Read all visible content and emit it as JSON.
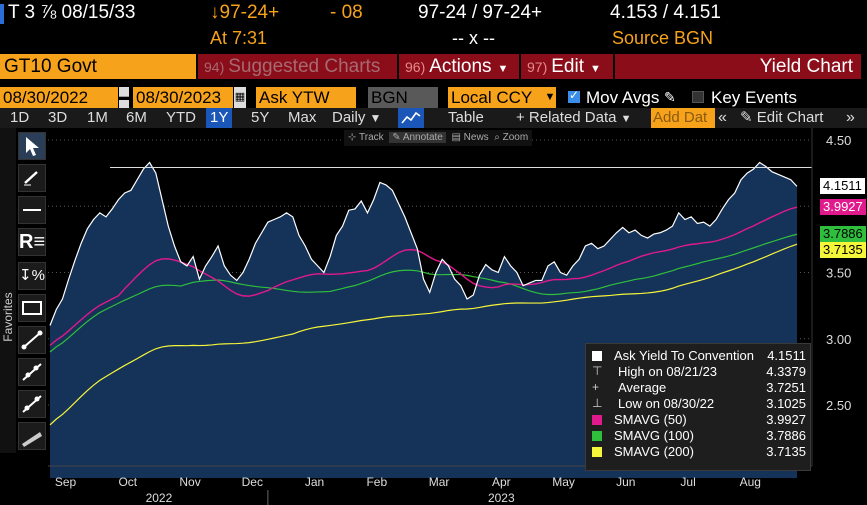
{
  "quote": {
    "security": "T 3 ⅞ 08/15/33",
    "change_price": "↓97-24+",
    "change": "- 08",
    "bid_ask_price": "97-24 / 97-24+",
    "yield": "4.153 / 4.151",
    "time": "At 7:31",
    "size": "-- x --",
    "source": "Source BGN"
  },
  "menubar": {
    "ticker": "GT10 Govt",
    "suggested": {
      "num": "94)",
      "label": "Suggested Charts"
    },
    "actions": {
      "num": "96)",
      "label": "Actions"
    },
    "edit": {
      "num": "97)",
      "label": "Edit"
    },
    "title": "Yield Chart"
  },
  "controls": {
    "start_date": "08/30/2022",
    "end_date": "08/30/2023",
    "field": "Ask YTW",
    "source": "BGN",
    "currency": "Local CCY",
    "mov_avgs": "Mov Avgs",
    "key_events": "Key Events"
  },
  "toolbar": {
    "ranges": [
      "1D",
      "3D",
      "1M",
      "6M",
      "YTD",
      "1Y",
      "5Y",
      "Max"
    ],
    "selected_range": "1Y",
    "frequency": "Daily",
    "table": "Table",
    "related": "+ Related Data",
    "add_data": "Add Dat",
    "edit_chart": "Edit Chart"
  },
  "mini_tools": [
    "Track",
    "Annotate",
    "News",
    "Zoom"
  ],
  "side": {
    "favorites": "Favorites"
  },
  "colors": {
    "price": "#ffffff",
    "area": "#16355e",
    "sma50": "#e0198c",
    "sma100": "#2fbf3c",
    "sma200": "#f5f53a",
    "accent": "#f7a21b",
    "menu": "#8b0d1a"
  },
  "chart_data": {
    "type": "area",
    "ylim": [
      2.1,
      4.5
    ],
    "yticks": [
      "4.50",
      "4.00",
      "3.50",
      "3.00",
      "2.50"
    ],
    "ytick_values": [
      4.5,
      4.0,
      3.5,
      3.0,
      2.5
    ],
    "x_month_labels": [
      "Sep",
      "Oct",
      "Nov",
      "Dec",
      "Jan",
      "Feb",
      "Mar",
      "Apr",
      "May",
      "Jun",
      "Jul",
      "Aug"
    ],
    "x_month_index": [
      1,
      5,
      9,
      13,
      17,
      21,
      25,
      29,
      33,
      37,
      41,
      45
    ],
    "year_labels": [
      {
        "label": "2022",
        "index": 7
      },
      {
        "label": "2023",
        "index": 29
      }
    ],
    "x_divider_index": 14,
    "high_line": 4.3379,
    "series": [
      {
        "name": "Ask Yield To Convention",
        "values": [
          3.1,
          3.22,
          3.3,
          3.45,
          3.59,
          3.72,
          3.83,
          3.9,
          3.95,
          3.92,
          3.98,
          4.05,
          4.1,
          4.12,
          4.2,
          4.28,
          4.33,
          4.25,
          4.05,
          3.85,
          3.7,
          3.58,
          3.55,
          3.62,
          3.45,
          3.55,
          3.62,
          3.7,
          3.55,
          3.48,
          3.44,
          3.5,
          3.6,
          3.72,
          3.8,
          3.88,
          3.9,
          3.92,
          3.95,
          3.92,
          3.78,
          3.7,
          3.6,
          3.55,
          3.5,
          3.62,
          3.78,
          3.85,
          3.97,
          3.98,
          4.04,
          3.95,
          4.05,
          4.18,
          4.16,
          4.12,
          4.02,
          3.92,
          3.8,
          3.68,
          3.45,
          3.35,
          3.5,
          3.6,
          3.55,
          3.45,
          3.4,
          3.3,
          3.33,
          3.48,
          3.56,
          3.52,
          3.5,
          3.62,
          3.55,
          3.5,
          3.4,
          3.42,
          3.44,
          3.44,
          3.55,
          3.58,
          3.5,
          3.48,
          3.55,
          3.6,
          3.7,
          3.72,
          3.68,
          3.7,
          3.75,
          3.8,
          3.84,
          3.8,
          3.82,
          3.78,
          3.76,
          3.79,
          3.8,
          3.82,
          3.85,
          3.95,
          3.9,
          3.92,
          3.87,
          3.88,
          3.85,
          3.9,
          3.98,
          4.05,
          4.1,
          4.2,
          4.25,
          4.28,
          4.33,
          4.3,
          4.26,
          4.24,
          4.22,
          4.2,
          4.15
        ]
      },
      {
        "name": "SMAVG (50)",
        "value": 3.9927
      },
      {
        "name": "SMAVG (100)",
        "value": 3.7886
      },
      {
        "name": "SMAVG (200)",
        "value": 3.7135
      }
    ],
    "legend": [
      {
        "key": "price",
        "name": "Ask Yield To Convention",
        "value": "4.1511"
      },
      {
        "key": "high",
        "name": "High on 08/21/23",
        "value": "4.3379"
      },
      {
        "key": "avg",
        "name": "Average",
        "value": "3.7251"
      },
      {
        "key": "low",
        "name": "Low on 08/30/22",
        "value": "3.1025"
      },
      {
        "key": "sma50",
        "name": "SMAVG (50)",
        "value": "3.9927"
      },
      {
        "key": "sma100",
        "name": "SMAVG (100)",
        "value": "3.7886"
      },
      {
        "key": "sma200",
        "name": "SMAVG (200)",
        "value": "3.7135"
      }
    ],
    "last_tags": {
      "price": "4.1511",
      "sma50": "3.9927",
      "sma100": "3.7886",
      "sma200": "3.7135"
    }
  }
}
